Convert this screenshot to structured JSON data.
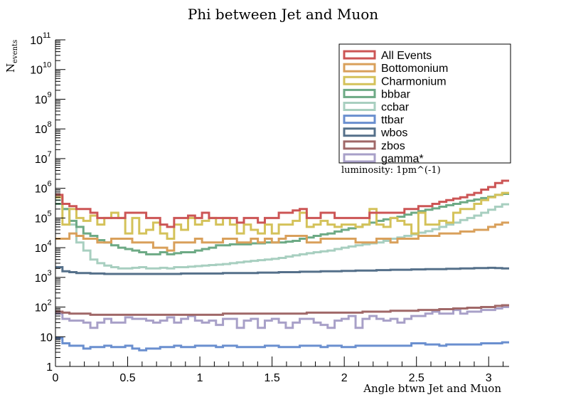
{
  "chart_data": {
    "type": "line",
    "title": "Phi between Jet and Muon",
    "xlabel": "Angle btwn Jet and Muon",
    "ylabel_main": "N",
    "ylabel_sub": "events",
    "annotation": "luminosity: 1pm^(-1)",
    "xlim": [
      0,
      3.1416
    ],
    "ylim": [
      1,
      100000000000
    ],
    "yscale": "log",
    "legend_position": "top-right",
    "x_ticks": [
      "0",
      "0.5",
      "1",
      "1.5",
      "2",
      "2.5",
      "3"
    ],
    "x_tick_values": [
      0,
      0.5,
      1,
      1.5,
      2,
      2.5,
      3
    ],
    "y_ticks": [
      {
        "base": "1",
        "exp": "",
        "value": 1
      },
      {
        "base": "10",
        "exp": "",
        "value": 10
      },
      {
        "base": "10",
        "exp": "2",
        "value": 100
      },
      {
        "base": "10",
        "exp": "3",
        "value": 1000
      },
      {
        "base": "10",
        "exp": "4",
        "value": 10000
      },
      {
        "base": "10",
        "exp": "5",
        "value": 100000
      },
      {
        "base": "10",
        "exp": "6",
        "value": 1000000
      },
      {
        "base": "10",
        "exp": "7",
        "value": 10000000
      },
      {
        "base": "10",
        "exp": "8",
        "value": 100000000
      },
      {
        "base": "10",
        "exp": "9",
        "value": 1000000000
      },
      {
        "base": "10",
        "exp": "10",
        "value": 10000000000
      },
      {
        "base": "10",
        "exp": "11",
        "value": 100000000000
      }
    ],
    "bins": 64,
    "series": [
      {
        "name": "All Events",
        "color": "#cc5555",
        "values": [
          600000,
          300000,
          250000,
          200000,
          200000,
          150000,
          100000,
          100000,
          100000,
          100000,
          150000,
          150000,
          150000,
          100000,
          100000,
          60000,
          50000,
          100000,
          100000,
          120000,
          100000,
          150000,
          100000,
          100000,
          100000,
          100000,
          70000,
          100000,
          100000,
          70000,
          100000,
          100000,
          150000,
          150000,
          180000,
          200000,
          100000,
          100000,
          150000,
          150000,
          100000,
          100000,
          100000,
          100000,
          100000,
          150000,
          150000,
          150000,
          150000,
          150000,
          200000,
          200000,
          250000,
          250000,
          300000,
          350000,
          400000,
          450000,
          500000,
          600000,
          700000,
          900000,
          1100000,
          1500000,
          1800000
        ]
      },
      {
        "name": "Bottomonium",
        "color": "#d9a05b",
        "values": [
          20000,
          20000,
          30000,
          25000,
          20000,
          20000,
          15000,
          15000,
          20000,
          20000,
          20000,
          15000,
          15000,
          15000,
          10000,
          10000,
          8000,
          15000,
          15000,
          15000,
          20000,
          15000,
          15000,
          15000,
          20000,
          20000,
          15000,
          15000,
          20000,
          15000,
          20000,
          15000,
          20000,
          25000,
          25000,
          25000,
          15000,
          15000,
          20000,
          20000,
          20000,
          20000,
          20000,
          15000,
          15000,
          15000,
          20000,
          20000,
          15000,
          20000,
          20000,
          20000,
          25000,
          25000,
          25000,
          30000,
          30000,
          30000,
          35000,
          35000,
          40000,
          40000,
          50000,
          60000,
          70000
        ]
      },
      {
        "name": "Charmonium",
        "color": "#d4c25a",
        "values": [
          500000,
          60000,
          200000,
          100000,
          80000,
          120000,
          60000,
          100000,
          150000,
          100000,
          30000,
          100000,
          30000,
          40000,
          70000,
          30000,
          20000,
          60000,
          40000,
          100000,
          60000,
          80000,
          100000,
          60000,
          100000,
          60000,
          30000,
          60000,
          40000,
          30000,
          60000,
          30000,
          60000,
          60000,
          80000,
          150000,
          50000,
          60000,
          80000,
          60000,
          50000,
          60000,
          60000,
          50000,
          60000,
          200000,
          60000,
          50000,
          100000,
          80000,
          60000,
          30000,
          150000,
          60000,
          60000,
          80000,
          70000,
          150000,
          200000,
          200000,
          300000,
          400000,
          500000,
          600000,
          700000
        ]
      },
      {
        "name": "bbbar",
        "color": "#6daa85",
        "values": [
          300000,
          200000,
          80000,
          50000,
          30000,
          25000,
          18000,
          15000,
          12000,
          10000,
          9000,
          8000,
          7000,
          6000,
          6000,
          7000,
          6000,
          6500,
          7000,
          7000,
          8000,
          9000,
          10000,
          12000,
          12000,
          13000,
          13000,
          13000,
          14000,
          14000,
          15000,
          15000,
          15000,
          16000,
          17000,
          20000,
          22000,
          25000,
          28000,
          30000,
          35000,
          40000,
          45000,
          50000,
          60000,
          70000,
          80000,
          90000,
          100000,
          110000,
          130000,
          150000,
          170000,
          190000,
          210000,
          240000,
          270000,
          300000,
          340000,
          380000,
          420000,
          470000,
          520000,
          600000,
          650000
        ]
      },
      {
        "name": "ccbar",
        "color": "#a8cfc0",
        "values": [
          400000,
          200000,
          60000,
          15000,
          8000,
          4000,
          3000,
          2500,
          2200,
          2000,
          2000,
          2100,
          2200,
          2000,
          2000,
          2100,
          2000,
          2200,
          2200,
          2300,
          2400,
          2500,
          2600,
          2700,
          2800,
          3000,
          3200,
          3400,
          3600,
          3800,
          4000,
          4200,
          4500,
          5000,
          5500,
          6000,
          6500,
          7000,
          7500,
          8000,
          9000,
          10000,
          11000,
          12000,
          13000,
          14000,
          15000,
          17000,
          20000,
          22000,
          25000,
          28000,
          32000,
          36000,
          42000,
          50000,
          60000,
          70000,
          85000,
          100000,
          120000,
          150000,
          190000,
          240000,
          290000
        ]
      },
      {
        "name": "ttbar",
        "color": "#6a8fcf",
        "values": [
          9,
          6,
          5,
          5,
          4,
          4.5,
          4.5,
          5,
          4.5,
          4.5,
          5,
          4,
          3.5,
          4,
          4,
          4.5,
          4.5,
          5,
          4.5,
          4.5,
          5,
          5,
          5,
          4.5,
          5,
          5,
          4.5,
          4.5,
          4.5,
          4.5,
          5,
          5,
          4.5,
          4.5,
          4.5,
          5,
          5,
          5,
          4.5,
          5,
          5,
          4.5,
          4.5,
          5,
          5,
          5,
          5,
          5,
          5,
          5,
          5,
          6,
          6,
          5.5,
          5.5,
          5,
          5.5,
          5.5,
          5.5,
          5.5,
          5.5,
          6,
          6,
          6,
          6.5
        ]
      },
      {
        "name": "wbos",
        "color": "#55708a",
        "values": [
          2200,
          1600,
          1500,
          1400,
          1400,
          1350,
          1350,
          1300,
          1300,
          1300,
          1300,
          1300,
          1300,
          1300,
          1300,
          1300,
          1300,
          1300,
          1350,
          1350,
          1350,
          1350,
          1350,
          1350,
          1400,
          1400,
          1400,
          1400,
          1400,
          1450,
          1450,
          1450,
          1500,
          1500,
          1500,
          1550,
          1550,
          1550,
          1600,
          1600,
          1600,
          1650,
          1650,
          1700,
          1700,
          1700,
          1750,
          1750,
          1800,
          1800,
          1800,
          1850,
          1850,
          1900,
          1900,
          1900,
          1950,
          1950,
          2000,
          2000,
          2050,
          2050,
          2100,
          2050,
          2000
        ]
      },
      {
        "name": "zbos",
        "color": "#a06868",
        "values": [
          70,
          65,
          60,
          60,
          60,
          55,
          55,
          55,
          55,
          55,
          55,
          55,
          55,
          55,
          55,
          55,
          55,
          55,
          55,
          55,
          55,
          55,
          55,
          55,
          60,
          60,
          60,
          60,
          60,
          60,
          60,
          60,
          60,
          60,
          60,
          60,
          65,
          65,
          65,
          65,
          65,
          65,
          65,
          65,
          70,
          70,
          70,
          70,
          75,
          75,
          75,
          75,
          80,
          80,
          80,
          85,
          85,
          90,
          90,
          95,
          95,
          100,
          100,
          110,
          115
        ]
      },
      {
        "name": "gamma*",
        "color": "#a8a0c8",
        "values": [
          60,
          40,
          35,
          35,
          30,
          20,
          30,
          40,
          30,
          30,
          45,
          40,
          40,
          35,
          30,
          35,
          45,
          30,
          40,
          50,
          35,
          30,
          35,
          25,
          40,
          40,
          20,
          35,
          40,
          20,
          35,
          40,
          30,
          20,
          30,
          40,
          40,
          30,
          25,
          20,
          35,
          40,
          50,
          20,
          40,
          50,
          40,
          35,
          40,
          30,
          40,
          50,
          50,
          60,
          70,
          60,
          60,
          80,
          60,
          70,
          70,
          80,
          80,
          90,
          100
        ]
      }
    ]
  }
}
